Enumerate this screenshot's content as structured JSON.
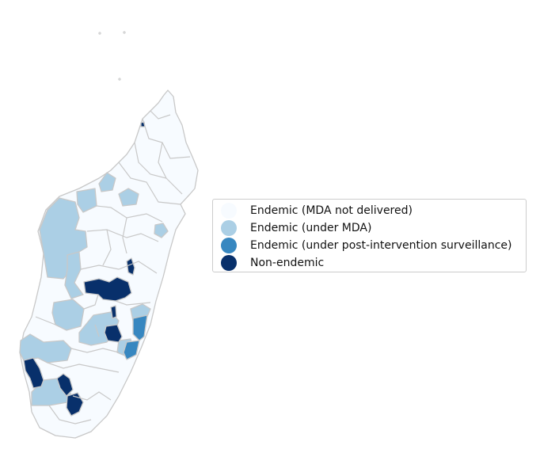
{
  "map": {
    "legend": {
      "items": [
        {
          "label": "Endemic (MDA not delivered)",
          "color": "#f7fbff"
        },
        {
          "label": "Endemic (under MDA)",
          "color": "#abcfe5"
        },
        {
          "label": "Endemic (under post-intervention surveillance)",
          "color": "#3787c0"
        },
        {
          "label": "Non-endemic",
          "color": "#08306b"
        }
      ]
    },
    "border_color": "#c8c8c8",
    "category_counts": {
      "mda_not_delivered": 60,
      "under_mda": 18,
      "post_intervention": 2,
      "non_endemic": 8
    }
  }
}
